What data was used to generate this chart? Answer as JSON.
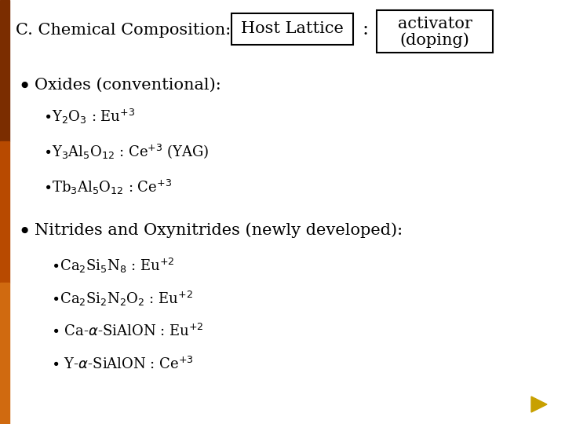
{
  "title": "C. Chemical Composition:",
  "box1_text": "Host Lattice",
  "colon": " : ",
  "box2_line1": "activator",
  "box2_line2": "(doping)",
  "bg_color": "#ffffff",
  "text_color": "#000000",
  "left_bar_colors": [
    "#7B2D00",
    "#B84A00",
    "#D06A10"
  ],
  "arrow_color": "#C8A000",
  "font_size_title": 15,
  "font_size_bullet": 15,
  "font_size_item": 13,
  "font_size_box": 15
}
